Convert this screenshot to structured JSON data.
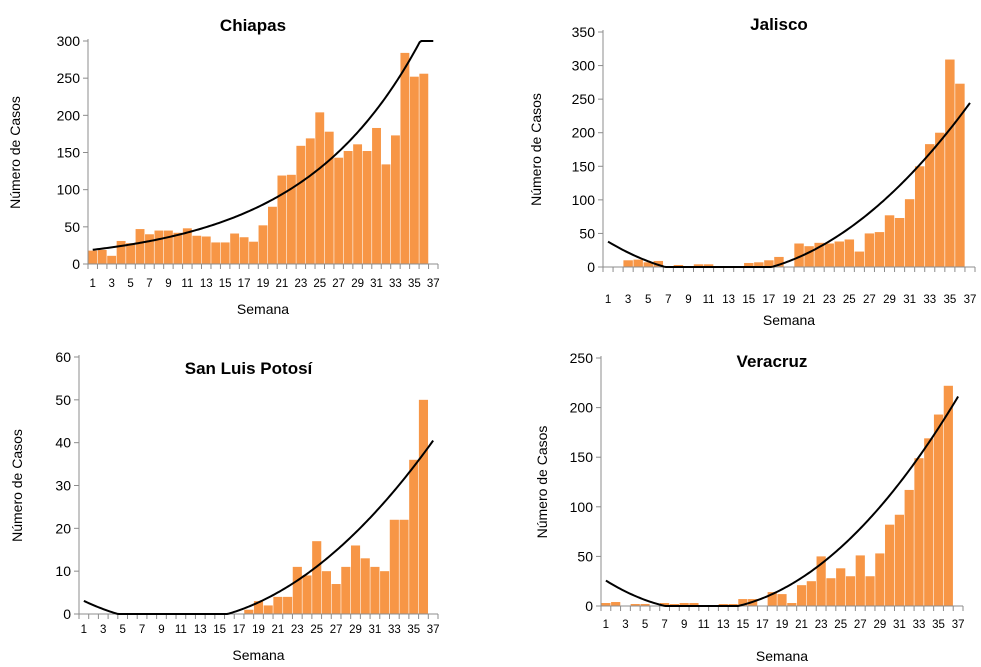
{
  "colors": {
    "bar": "#F79646",
    "trend": "#000000",
    "axis": "#8C8C8C"
  },
  "chart_data": [
    {
      "type": "bar",
      "title": "Chiapas",
      "xlabel": "Semana",
      "ylabel": "Número de Casos",
      "ylim": [
        0,
        300
      ],
      "yticks": [
        0,
        50,
        100,
        150,
        200,
        250,
        300
      ],
      "x": [
        1,
        2,
        3,
        4,
        5,
        6,
        7,
        8,
        9,
        10,
        11,
        12,
        13,
        14,
        15,
        16,
        17,
        18,
        19,
        20,
        21,
        22,
        23,
        24,
        25,
        26,
        27,
        28,
        29,
        30,
        31,
        32,
        33,
        34,
        35,
        36
      ],
      "xtick_labels": [
        "1",
        "3",
        "5",
        "7",
        "9",
        "11",
        "13",
        "15",
        "17",
        "19",
        "21",
        "23",
        "25",
        "27",
        "29",
        "31",
        "33",
        "35",
        "37"
      ],
      "values": [
        18,
        19,
        11,
        31,
        28,
        47,
        40,
        45,
        45,
        42,
        48,
        38,
        37,
        29,
        29,
        41,
        36,
        30,
        52,
        77,
        119,
        120,
        159,
        169,
        204,
        178,
        143,
        152,
        161,
        152,
        183,
        134,
        173,
        284,
        252,
        256
      ],
      "trend": {
        "type": "exponential",
        "a": 17.66,
        "b": 0.0795
      }
    },
    {
      "type": "bar",
      "title": "Jalisco",
      "xlabel": "Semana",
      "ylabel": "Número de Casos",
      "ylim": [
        0,
        350
      ],
      "yticks": [
        0,
        50,
        100,
        150,
        200,
        250,
        300,
        350
      ],
      "x": [
        1,
        2,
        3,
        4,
        5,
        6,
        7,
        8,
        9,
        10,
        11,
        12,
        13,
        14,
        15,
        16,
        17,
        18,
        19,
        20,
        21,
        22,
        23,
        24,
        25,
        26,
        27,
        28,
        29,
        30,
        31,
        32,
        33,
        34,
        35,
        36
      ],
      "xtick_labels": [
        "1",
        "3",
        "5",
        "7",
        "9",
        "11",
        "13",
        "15",
        "17",
        "19",
        "21",
        "23",
        "25",
        "27",
        "29",
        "31",
        "33",
        "35",
        "37"
      ],
      "values": [
        0,
        0,
        10,
        11,
        7,
        9,
        0,
        3,
        0,
        4,
        4,
        0,
        0,
        0,
        6,
        7,
        10,
        15,
        0,
        35,
        31,
        36,
        35,
        38,
        41,
        23,
        50,
        52,
        77,
        73,
        101,
        150,
        183,
        200,
        309,
        273
      ],
      "trend": {
        "type": "polynomial",
        "c2": 0.4086,
        "c1": -9.79,
        "c0": 47.21
      }
    },
    {
      "type": "bar",
      "title": "San Luis Potosí",
      "xlabel": "Semana",
      "ylabel": "Número de Casos",
      "ylim": [
        0,
        60
      ],
      "yticks": [
        0,
        10,
        20,
        30,
        40,
        50,
        60
      ],
      "x": [
        1,
        2,
        3,
        4,
        5,
        6,
        7,
        8,
        9,
        10,
        11,
        12,
        13,
        14,
        15,
        16,
        17,
        18,
        19,
        20,
        21,
        22,
        23,
        24,
        25,
        26,
        27,
        28,
        29,
        30,
        31,
        32,
        33,
        34,
        35,
        36
      ],
      "xtick_labels": [
        "1",
        "3",
        "5",
        "7",
        "9",
        "11",
        "13",
        "15",
        "17",
        "19",
        "21",
        "23",
        "25",
        "27",
        "29",
        "31",
        "33",
        "35",
        "37"
      ],
      "values": [
        0,
        0,
        0,
        0,
        0,
        0,
        0,
        0,
        0,
        0,
        0,
        0,
        0,
        0,
        0,
        0,
        0,
        1,
        3,
        2,
        4,
        4,
        11,
        9,
        17,
        10,
        7,
        11,
        16,
        13,
        11,
        10,
        22,
        22,
        36,
        50
      ],
      "trend": {
        "type": "polynomial",
        "c2": 0.05882,
        "c1": -1.1956,
        "c0": 4.2
      }
    },
    {
      "type": "bar",
      "title": "Veracruz",
      "xlabel": "Semana",
      "ylabel": "Número de Casos",
      "ylim": [
        0,
        250
      ],
      "yticks": [
        0,
        50,
        100,
        150,
        200,
        250
      ],
      "x": [
        1,
        2,
        3,
        4,
        5,
        6,
        7,
        8,
        9,
        10,
        11,
        12,
        13,
        14,
        15,
        16,
        17,
        18,
        19,
        20,
        21,
        22,
        23,
        24,
        25,
        26,
        27,
        28,
        29,
        30,
        31,
        32,
        33,
        34,
        35,
        36
      ],
      "xtick_labels": [
        "1",
        "3",
        "5",
        "7",
        "9",
        "11",
        "13",
        "15",
        "17",
        "19",
        "21",
        "23",
        "25",
        "27",
        "29",
        "31",
        "33",
        "35",
        "37"
      ],
      "values": [
        3,
        4,
        0,
        2,
        2,
        0,
        3,
        2,
        3,
        3,
        0,
        0,
        2,
        2,
        7,
        7,
        0,
        14,
        12,
        3,
        21,
        25,
        50,
        28,
        38,
        30,
        51,
        30,
        53,
        82,
        92,
        117,
        149,
        169,
        193,
        222
      ],
      "trend": {
        "type": "polynomial",
        "c2": 0.3135,
        "c1": -6.76,
        "c0": 32.09
      }
    }
  ]
}
